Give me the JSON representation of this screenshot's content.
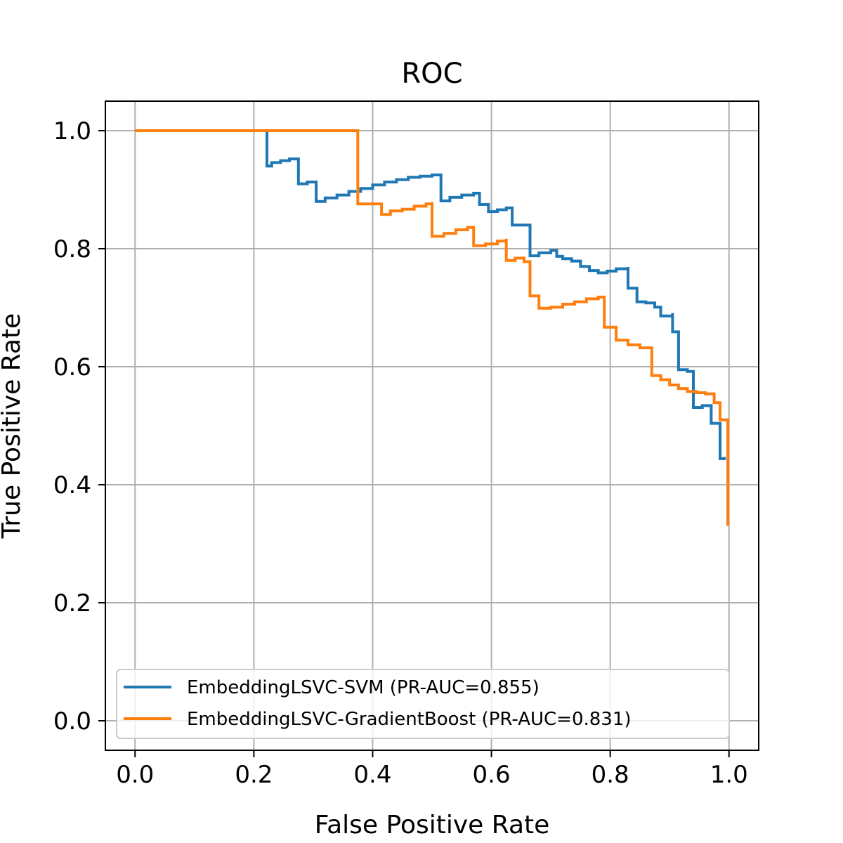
{
  "chart_data": {
    "type": "line",
    "title": "ROC",
    "xlabel": "False Positive Rate",
    "ylabel": "True Positive Rate",
    "xlim": [
      -0.05,
      1.05
    ],
    "ylim": [
      -0.05,
      1.05
    ],
    "xticks": [
      0.0,
      0.2,
      0.4,
      0.6,
      0.8,
      1.0
    ],
    "yticks": [
      0.0,
      0.2,
      0.4,
      0.6,
      0.8,
      1.0
    ],
    "xtick_labels": [
      "0.0",
      "0.2",
      "0.4",
      "0.6",
      "0.8",
      "1.0"
    ],
    "ytick_labels": [
      "0.0",
      "0.2",
      "0.4",
      "0.6",
      "0.8",
      "1.0"
    ],
    "grid": true,
    "legend_position": "lower-left",
    "series": [
      {
        "name": "EmbeddingLSVC-SVM (PR-AUC=0.855)",
        "color": "#1f77b4",
        "x": [
          0.0,
          0.222,
          0.222,
          0.23,
          0.245,
          0.26,
          0.275,
          0.275,
          0.29,
          0.305,
          0.305,
          0.32,
          0.34,
          0.36,
          0.38,
          0.4,
          0.42,
          0.44,
          0.46,
          0.48,
          0.5,
          0.515,
          0.515,
          0.53,
          0.55,
          0.57,
          0.58,
          0.58,
          0.595,
          0.61,
          0.625,
          0.635,
          0.635,
          0.65,
          0.665,
          0.665,
          0.68,
          0.7,
          0.71,
          0.72,
          0.735,
          0.75,
          0.765,
          0.78,
          0.795,
          0.81,
          0.83,
          0.83,
          0.845,
          0.845,
          0.86,
          0.875,
          0.885,
          0.885,
          0.905,
          0.905,
          0.915,
          0.915,
          0.93,
          0.94,
          0.94,
          0.955,
          0.97,
          0.97,
          0.985,
          0.985,
          0.992
        ],
        "y": [
          1.0,
          1.0,
          0.94,
          0.946,
          0.949,
          0.952,
          0.952,
          0.91,
          0.913,
          0.913,
          0.88,
          0.886,
          0.891,
          0.897,
          0.902,
          0.908,
          0.913,
          0.917,
          0.921,
          0.923,
          0.925,
          0.925,
          0.881,
          0.887,
          0.891,
          0.894,
          0.894,
          0.875,
          0.863,
          0.866,
          0.869,
          0.869,
          0.84,
          0.84,
          0.84,
          0.788,
          0.793,
          0.797,
          0.787,
          0.783,
          0.779,
          0.77,
          0.763,
          0.759,
          0.762,
          0.766,
          0.769,
          0.733,
          0.733,
          0.71,
          0.708,
          0.701,
          0.698,
          0.686,
          0.691,
          0.659,
          0.659,
          0.595,
          0.592,
          0.592,
          0.531,
          0.534,
          0.531,
          0.504,
          0.503,
          0.444,
          0.447
        ]
      },
      {
        "name": "EmbeddingLSVC-GradientBoost (PR-AUC=0.831)",
        "color": "#ff7f0e",
        "x": [
          0.0,
          0.375,
          0.375,
          0.395,
          0.415,
          0.415,
          0.43,
          0.45,
          0.47,
          0.49,
          0.5,
          0.5,
          0.52,
          0.54,
          0.56,
          0.57,
          0.57,
          0.59,
          0.61,
          0.625,
          0.625,
          0.64,
          0.655,
          0.665,
          0.665,
          0.68,
          0.68,
          0.7,
          0.72,
          0.74,
          0.76,
          0.78,
          0.79,
          0.79,
          0.81,
          0.81,
          0.83,
          0.85,
          0.87,
          0.87,
          0.885,
          0.9,
          0.915,
          0.93,
          0.945,
          0.96,
          0.975,
          0.975,
          0.985,
          0.985,
          0.998,
          0.998
        ],
        "y": [
          1.0,
          1.0,
          0.876,
          0.876,
          0.876,
          0.858,
          0.864,
          0.867,
          0.872,
          0.876,
          0.879,
          0.821,
          0.826,
          0.832,
          0.836,
          0.836,
          0.805,
          0.808,
          0.813,
          0.817,
          0.78,
          0.784,
          0.778,
          0.778,
          0.72,
          0.711,
          0.699,
          0.701,
          0.706,
          0.71,
          0.715,
          0.718,
          0.712,
          0.667,
          0.658,
          0.645,
          0.637,
          0.632,
          0.628,
          0.585,
          0.578,
          0.569,
          0.563,
          0.558,
          0.556,
          0.554,
          0.554,
          0.539,
          0.539,
          0.51,
          0.51,
          0.33
        ]
      }
    ]
  }
}
